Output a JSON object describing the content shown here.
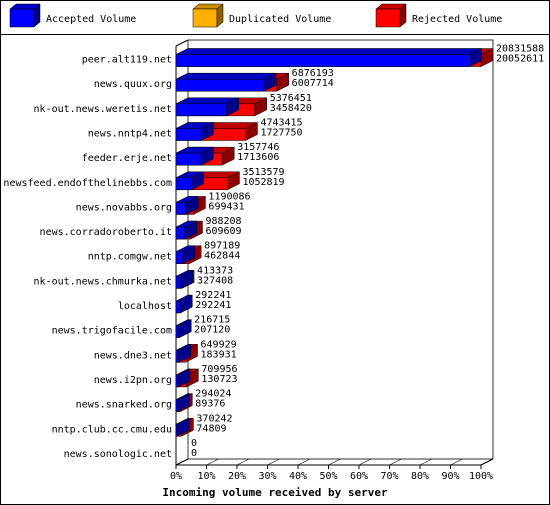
{
  "chart_data": {
    "type": "bar3d",
    "legend": [
      {
        "name": "Accepted Volume",
        "color": "#0000ff"
      },
      {
        "name": "Duplicated Volume",
        "color": "#ffb000"
      },
      {
        "name": "Rejected Volume",
        "color": "#ff0000"
      }
    ],
    "x_label": "Incoming volume received by server",
    "categories": [
      "peer.alt119.net",
      "news.quux.org",
      "nk-out.news.weretis.net",
      "news.nntp4.net",
      "feeder.erje.net",
      "newsfeed.endofthelinebbs.com",
      "news.novabbs.org",
      "news.corradoroberto.it",
      "nntp.comgw.net",
      "nk-out.news.chmurka.net",
      "localhost",
      "news.trigofacile.com",
      "news.dne3.net",
      "news.i2pn.org",
      "news.snarked.org",
      "nntp.club.cc.cmu.edu",
      "news.sonologic.net"
    ],
    "offered": [
      20831588,
      6876193,
      5376451,
      4743415,
      3157746,
      3513579,
      1190086,
      988208,
      897189,
      413373,
      292241,
      216715,
      649929,
      709956,
      294024,
      370242,
      0
    ],
    "accepted": [
      20052611,
      6007714,
      3458420,
      1727750,
      1713606,
      1052819,
      699431,
      609609,
      462844,
      327408,
      292241,
      207120,
      183931,
      130723,
      89376,
      74809,
      0
    ],
    "xlim": [
      0,
      20831588
    ],
    "xticks": [
      {
        "value": 0,
        "label": "0%"
      },
      {
        "value": 2083158.8,
        "label": "10%"
      },
      {
        "value": 4166317.6,
        "label": "20%"
      },
      {
        "value": 6249476.4,
        "label": "30%"
      },
      {
        "value": 8332635.2,
        "label": "40%"
      },
      {
        "value": 10415794,
        "label": "50%"
      },
      {
        "value": 12498952.8,
        "label": "60%"
      },
      {
        "value": 14582111.6,
        "label": "70%"
      },
      {
        "value": 16665270.4,
        "label": "80%"
      },
      {
        "value": 18748429.2,
        "label": "90%"
      },
      {
        "value": 20831588,
        "label": "100%"
      }
    ]
  }
}
